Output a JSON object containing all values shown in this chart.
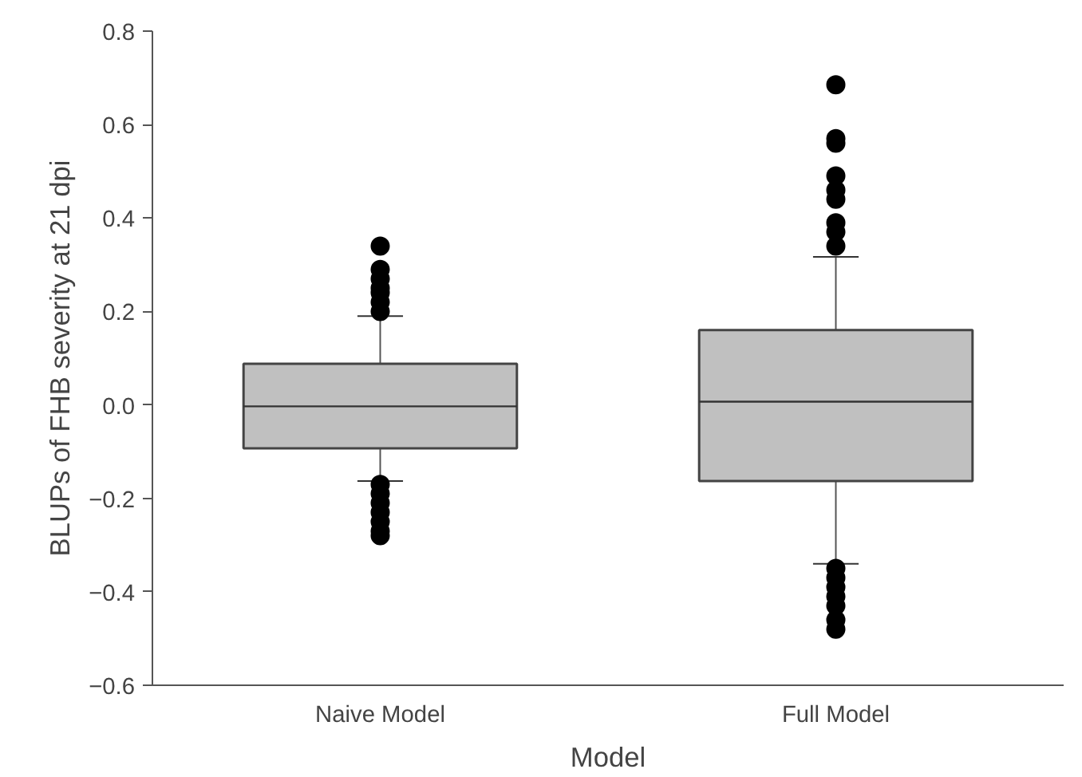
{
  "chart_data": {
    "type": "box",
    "xlabel": "Model",
    "ylabel": "BLUPs of FHB severity at 21 dpi",
    "categories": [
      "Naive Model",
      "Full Model"
    ],
    "boxes": [
      {
        "low": -0.163,
        "q1": -0.093,
        "median": -0.003,
        "q3": 0.088,
        "high": 0.19,
        "outliers": [
          0.2,
          0.22,
          0.24,
          0.25,
          0.27,
          0.29,
          0.34,
          -0.17,
          -0.19,
          -0.21,
          -0.23,
          -0.25,
          -0.27,
          -0.28
        ]
      },
      {
        "low": -0.34,
        "q1": -0.163,
        "median": 0.007,
        "q3": 0.16,
        "high": 0.317,
        "outliers": [
          0.34,
          0.37,
          0.39,
          0.44,
          0.46,
          0.49,
          0.56,
          0.57,
          0.685,
          -0.35,
          -0.37,
          -0.39,
          -0.41,
          -0.43,
          -0.46,
          -0.48
        ]
      }
    ],
    "color": "#c0c0c0",
    "grid": false,
    "ylim": [
      -0.6,
      0.8
    ],
    "yticks": [
      -0.6,
      -0.4,
      -0.2,
      {
        "value": 0,
        "label": "0.0"
      },
      0.2,
      0.4,
      0.6,
      0.8
    ]
  }
}
